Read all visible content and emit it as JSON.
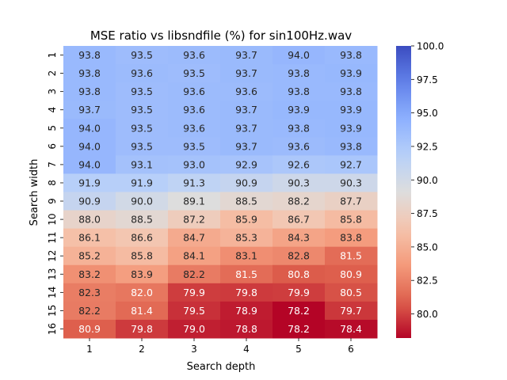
{
  "chart_data": {
    "type": "heatmap",
    "title": "MSE ratio vs libsndfile (%) for sin100Hz.wav",
    "xlabel": "Search depth",
    "ylabel": "Search width",
    "x_categories": [
      "1",
      "2",
      "3",
      "4",
      "5",
      "6"
    ],
    "y_categories": [
      "1",
      "2",
      "3",
      "4",
      "5",
      "6",
      "7",
      "8",
      "9",
      "10",
      "11",
      "12",
      "13",
      "14",
      "15",
      "16"
    ],
    "values": [
      [
        93.8,
        93.5,
        93.6,
        93.7,
        94.0,
        93.8
      ],
      [
        93.8,
        93.6,
        93.5,
        93.7,
        93.8,
        93.9
      ],
      [
        93.8,
        93.5,
        93.6,
        93.6,
        93.8,
        93.8
      ],
      [
        93.7,
        93.5,
        93.6,
        93.7,
        93.9,
        93.9
      ],
      [
        94.0,
        93.5,
        93.6,
        93.7,
        93.8,
        93.9
      ],
      [
        94.0,
        93.5,
        93.5,
        93.7,
        93.6,
        93.8
      ],
      [
        94.0,
        93.1,
        93.0,
        92.9,
        92.6,
        92.7
      ],
      [
        91.9,
        91.9,
        91.3,
        90.9,
        90.3,
        90.3
      ],
      [
        90.9,
        90.0,
        89.1,
        88.5,
        88.2,
        87.7
      ],
      [
        88.0,
        88.5,
        87.2,
        85.9,
        86.7,
        85.8
      ],
      [
        86.1,
        86.6,
        84.7,
        85.3,
        84.3,
        83.8
      ],
      [
        85.2,
        85.8,
        84.1,
        83.1,
        82.8,
        81.5
      ],
      [
        83.2,
        83.9,
        82.2,
        81.5,
        80.8,
        80.9
      ],
      [
        82.3,
        82.0,
        79.9,
        79.8,
        79.9,
        80.5
      ],
      [
        82.2,
        81.4,
        79.5,
        78.9,
        78.2,
        79.7
      ],
      [
        80.9,
        79.8,
        79.0,
        78.8,
        78.2,
        78.4
      ]
    ],
    "colormap": "coolwarm_r",
    "vmin": 78.2,
    "vmax": 100.0,
    "colorbar_ticks": [
      "80.0",
      "82.5",
      "85.0",
      "87.5",
      "90.0",
      "92.5",
      "95.0",
      "97.5",
      "100.0"
    ],
    "annotation_dark_text_color": "#262626",
    "annotation_light_text_color": "#ffffff"
  }
}
